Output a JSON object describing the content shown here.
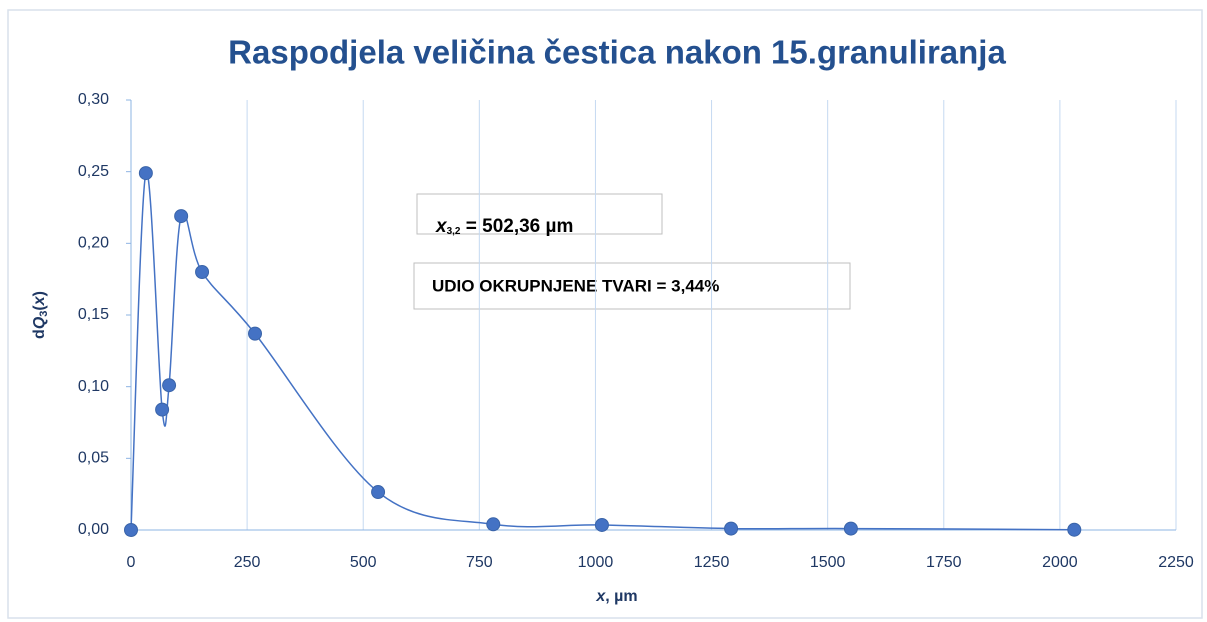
{
  "chart_data": {
    "type": "scatter-smooth",
    "title": "Raspodjela veličina čestica nakon 15.granuliranja",
    "x_label": [
      "x",
      ", µm"
    ],
    "y_label": [
      "d",
      "Q",
      "3",
      "(",
      "x",
      ")"
    ],
    "annotations": [
      {
        "text": [
          "x",
          "3,2",
          " = 502,36 µm"
        ]
      },
      {
        "text": [
          "UDIO OKRUPNJENE TVARI = 3,44%"
        ]
      }
    ],
    "x": [
      0,
      32,
      67,
      82,
      108,
      153,
      267,
      532,
      780,
      1014,
      1292,
      1550,
      2031
    ],
    "series": [
      {
        "name": "dQ3(x)",
        "color": "#4472c4",
        "values": [
          0,
          0.249,
          0.084,
          0.101,
          0.219,
          0.18,
          0.137,
          0.0265,
          0.004,
          0.0035,
          0.001,
          0.001,
          0.0002
        ]
      }
    ],
    "xlim": [
      0,
      2250
    ],
    "xticks": [
      0,
      250,
      500,
      750,
      1000,
      1250,
      1500,
      1750,
      2000,
      2250
    ],
    "ylim": [
      0,
      0.3
    ],
    "yticks": [
      {
        "value": 0,
        "label": "0,00"
      },
      {
        "value": 0.05,
        "label": "0,05"
      },
      {
        "value": 0.1,
        "label": "0,10"
      },
      {
        "value": 0.15,
        "label": "0,15"
      },
      {
        "value": 0.2,
        "label": "0,20"
      },
      {
        "value": 0.25,
        "label": "0,25"
      },
      {
        "value": 0.3,
        "label": "0,30"
      }
    ],
    "grid": "x"
  }
}
